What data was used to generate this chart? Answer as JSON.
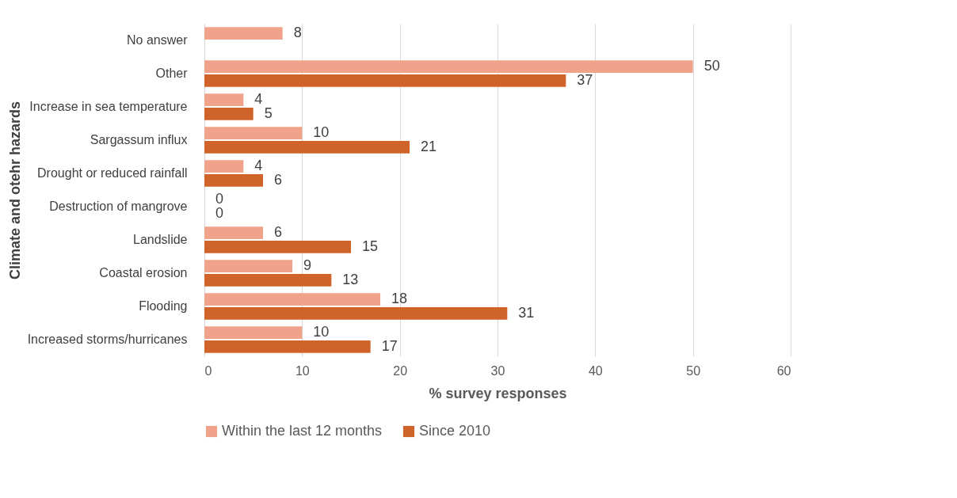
{
  "chart_data": {
    "type": "bar",
    "orientation": "horizontal",
    "xlabel": "% survey responses",
    "ylabel": "Climate and otehr hazards",
    "categories": [
      "No answer",
      "Other",
      "Increase in sea temperature",
      "Sargassum influx",
      "Drought or reduced rainfall",
      "Destruction of mangrove",
      "Landslide",
      "Coastal erosion",
      "Flooding",
      "Increased storms/hurricanes"
    ],
    "series": [
      {
        "name": "Within the last 12 months",
        "color": "#f0a28a",
        "values": [
          8,
          50,
          4,
          10,
          4,
          0,
          6,
          9,
          18,
          10
        ]
      },
      {
        "name": "Since 2010",
        "color": "#d0632a",
        "values": [
          null,
          37,
          5,
          21,
          6,
          0,
          15,
          13,
          31,
          17
        ]
      }
    ],
    "xlim": [
      0,
      60
    ],
    "xticks": [
      0,
      10,
      20,
      30,
      40,
      50,
      60
    ],
    "grid": "x",
    "legend": "bottom",
    "data_labels": true
  }
}
